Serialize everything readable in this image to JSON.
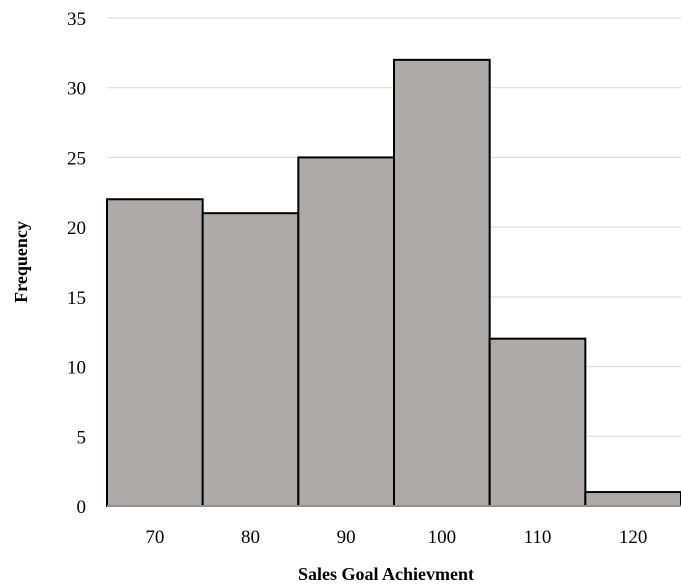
{
  "chart_data": {
    "type": "bar",
    "title": "",
    "xlabel": "Sales Goal  Achievment",
    "ylabel": "Frequency",
    "categories": [
      "70",
      "80",
      "90",
      "100",
      "110",
      "120"
    ],
    "values": [
      22,
      21,
      25,
      32,
      12,
      1
    ],
    "ylim": [
      0,
      35
    ],
    "yticks": [
      "0",
      "5",
      "10",
      "15",
      "20",
      "25",
      "30",
      "35"
    ],
    "grid": true,
    "legend": "none",
    "colors": {
      "bar_fill": "#aeaaaa",
      "bar_edge": "#000000",
      "grid": "#d9d9d9"
    }
  }
}
